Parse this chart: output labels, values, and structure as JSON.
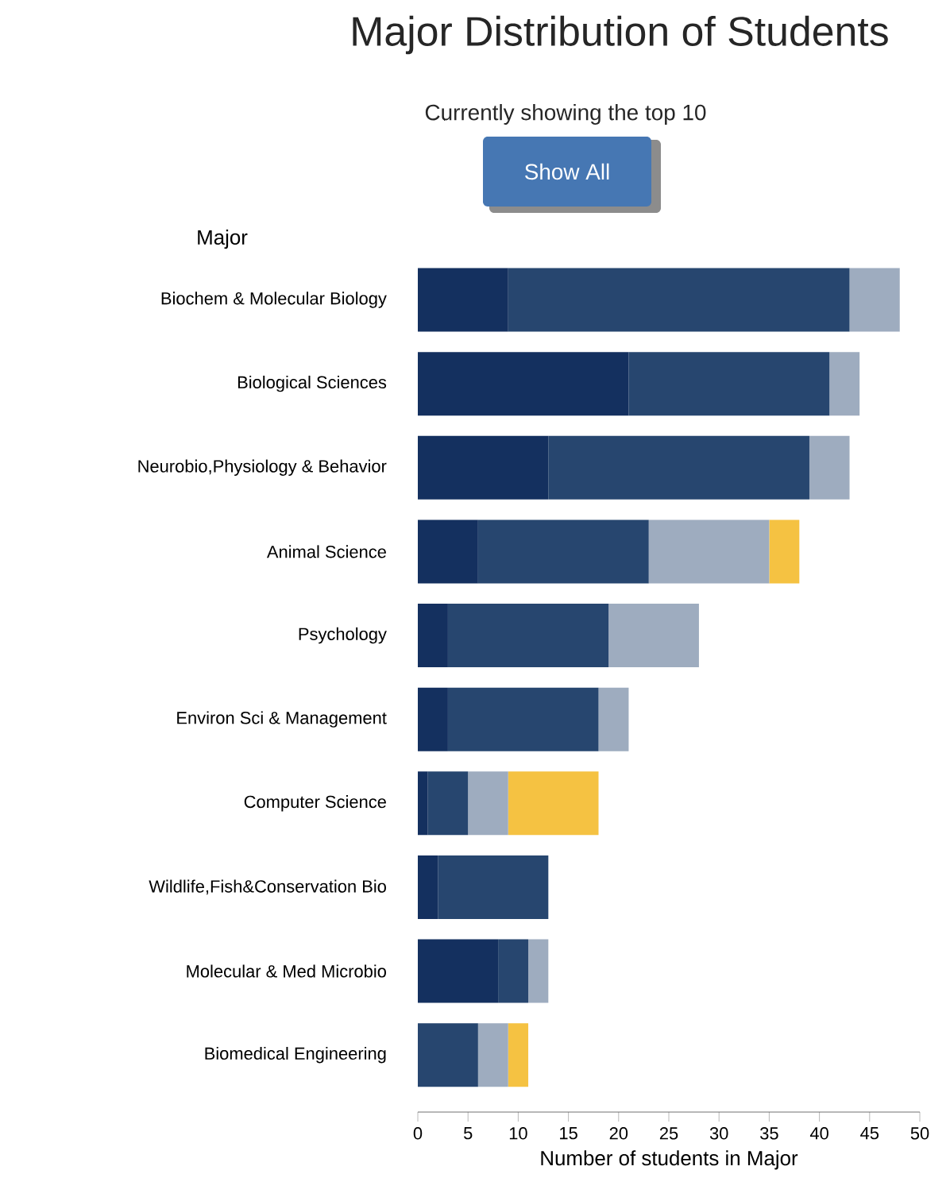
{
  "chart_data": {
    "type": "bar",
    "orientation": "horizontal",
    "stacked": true,
    "title": "Major Distribution of Students",
    "subtitle": "Currently showing the top 10",
    "annotations": [
      "Show All"
    ],
    "ylabel": "Major",
    "xlabel": "Number of students in Major",
    "categories": [
      "Biochem & Molecular Biology",
      "Biological Sciences",
      "Neurobio,Physiology & Behavior",
      "Animal Science",
      "Psychology",
      "Environ Sci & Management",
      "Computer Science",
      "Wildlife,Fish&Conservation Bio",
      "Molecular & Med Microbio",
      "Biomedical Engineering"
    ],
    "series": [
      {
        "color": "#14305f",
        "values": [
          9,
          21,
          13,
          6,
          3,
          3,
          1,
          2,
          8,
          0
        ]
      },
      {
        "color": "#27466f",
        "values": [
          34,
          20,
          26,
          17,
          16,
          15,
          4,
          11,
          3,
          6
        ]
      },
      {
        "color": "#9eacbf",
        "values": [
          5,
          3,
          4,
          12,
          9,
          3,
          4,
          0,
          2,
          3
        ]
      },
      {
        "color": "#f5c242",
        "values": [
          0,
          0,
          0,
          3,
          0,
          0,
          9,
          0,
          0,
          2
        ]
      }
    ],
    "xlim": [
      0,
      50
    ],
    "xticks": [
      0,
      5,
      10,
      15,
      20,
      25,
      30,
      35,
      40,
      45,
      50
    ]
  }
}
